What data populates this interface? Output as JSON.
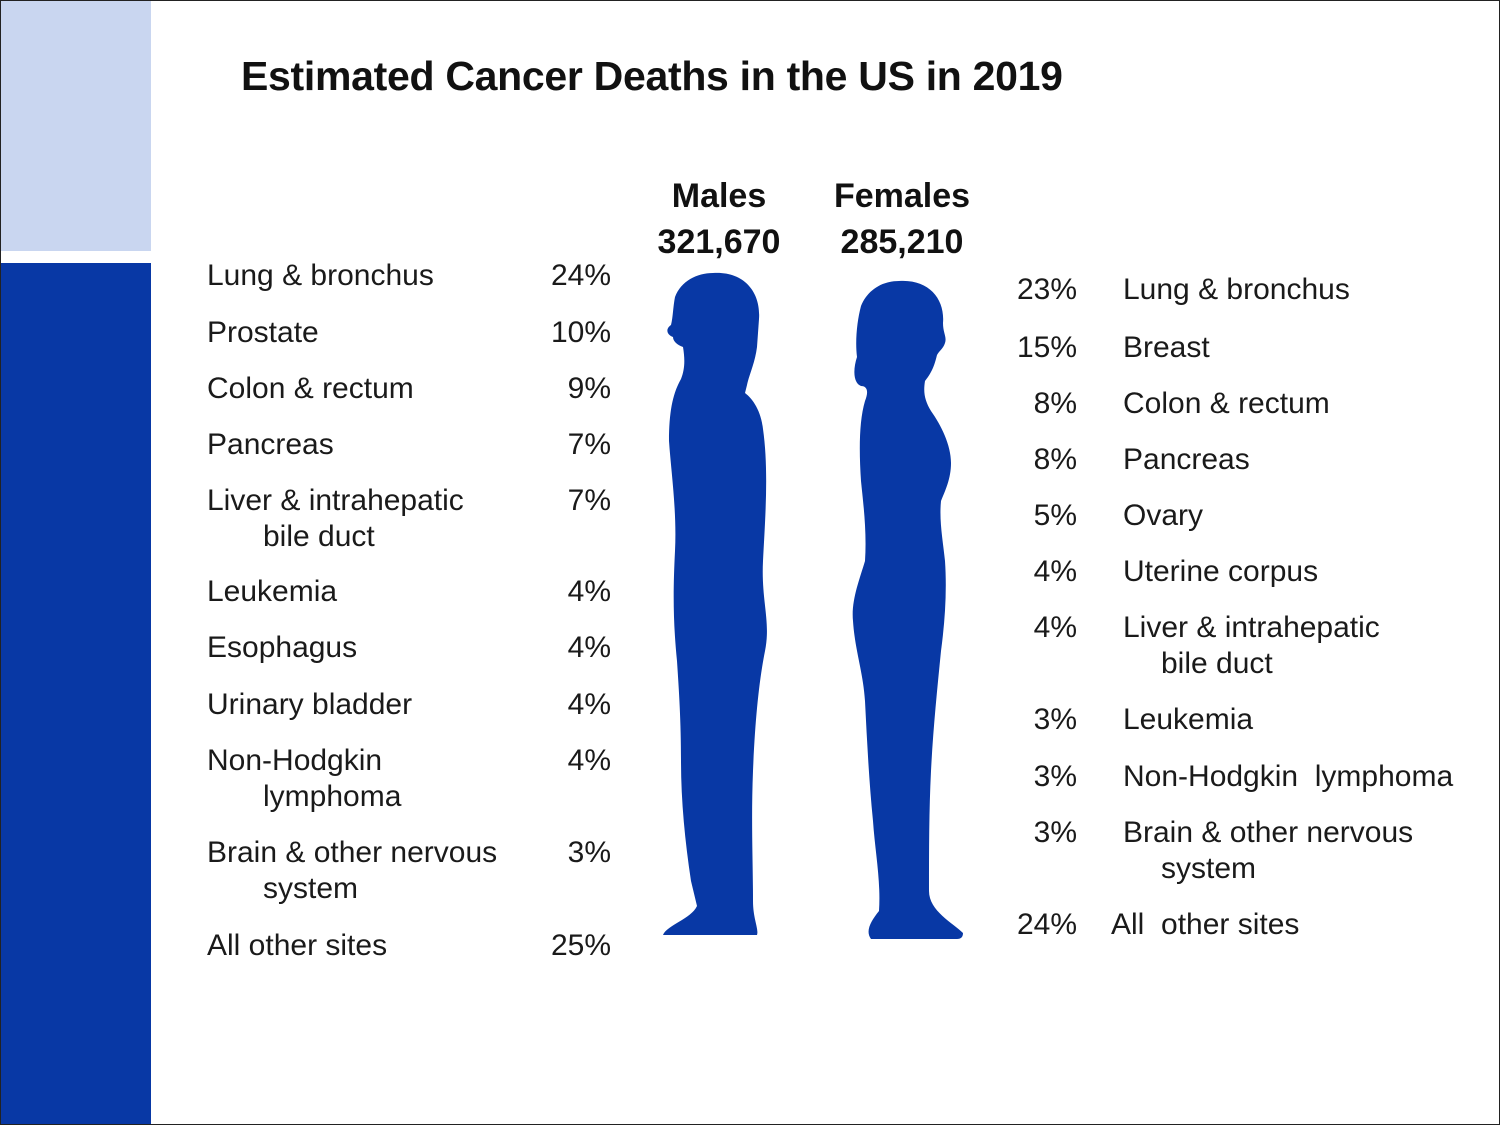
{
  "title": "Estimated Cancer Deaths in the US in 2019",
  "colors": {
    "accent": "#0838a5",
    "accent_light": "#c9d6f0",
    "silhouette": "#0838a5"
  },
  "chart_data": {
    "type": "table",
    "title": "Estimated Cancer Deaths in the US in 2019",
    "series": [
      {
        "name": "Males",
        "total": "321,670",
        "rows": [
          {
            "site": "Lung & bronchus",
            "site_l2": "",
            "pct": "24%",
            "value": 24
          },
          {
            "site": "Prostate",
            "site_l2": "",
            "pct": "10%",
            "value": 10
          },
          {
            "site": "Colon & rectum",
            "site_l2": "",
            "pct": "9%",
            "value": 9
          },
          {
            "site": "Pancreas",
            "site_l2": "",
            "pct": "7%",
            "value": 7
          },
          {
            "site": "Liver & intrahepatic",
            "site_l2": "bile duct",
            "pct": "7%",
            "value": 7
          },
          {
            "site": "Leukemia",
            "site_l2": "",
            "pct": "4%",
            "value": 4
          },
          {
            "site": "Esophagus",
            "site_l2": "",
            "pct": "4%",
            "value": 4
          },
          {
            "site": "Urinary bladder",
            "site_l2": "",
            "pct": "4%",
            "value": 4
          },
          {
            "site": "Non-Hodgkin",
            "site_l2": "lymphoma",
            "pct": "4%",
            "value": 4
          },
          {
            "site": "Brain & other nervous",
            "site_l2": "system",
            "pct": "3%",
            "value": 3
          },
          {
            "site": "All other sites",
            "site_l2": "",
            "pct": "25%",
            "value": 25
          }
        ]
      },
      {
        "name": "Females",
        "total": "285,210",
        "rows": [
          {
            "site": "Lung & bronchus",
            "site_l2": "",
            "pct": "23%",
            "value": 23
          },
          {
            "site": "Breast",
            "site_l2": "",
            "pct": "15%",
            "value": 15
          },
          {
            "site": "Colon & rectum",
            "site_l2": "",
            "pct": "8%",
            "value": 8
          },
          {
            "site": "Pancreas",
            "site_l2": "",
            "pct": "8%",
            "value": 8
          },
          {
            "site": "Ovary",
            "site_l2": "",
            "pct": "5%",
            "value": 5
          },
          {
            "site": "Uterine corpus",
            "site_l2": "",
            "pct": "4%",
            "value": 4
          },
          {
            "site": "Liver & intrahepatic",
            "site_l2": "bile duct",
            "pct": "4%",
            "value": 4
          },
          {
            "site": "Leukemia",
            "site_l2": "",
            "pct": "3%",
            "value": 3
          },
          {
            "site": "Non-Hodgkin  lymphoma",
            "site_l2": "",
            "pct": "3%",
            "value": 3
          },
          {
            "site": "Brain & other nervous",
            "site_l2": "system",
            "pct": "3%",
            "value": 3
          },
          {
            "site": "All  other sites",
            "site_l2": "",
            "pct": "24%",
            "value": 24
          }
        ]
      }
    ]
  }
}
